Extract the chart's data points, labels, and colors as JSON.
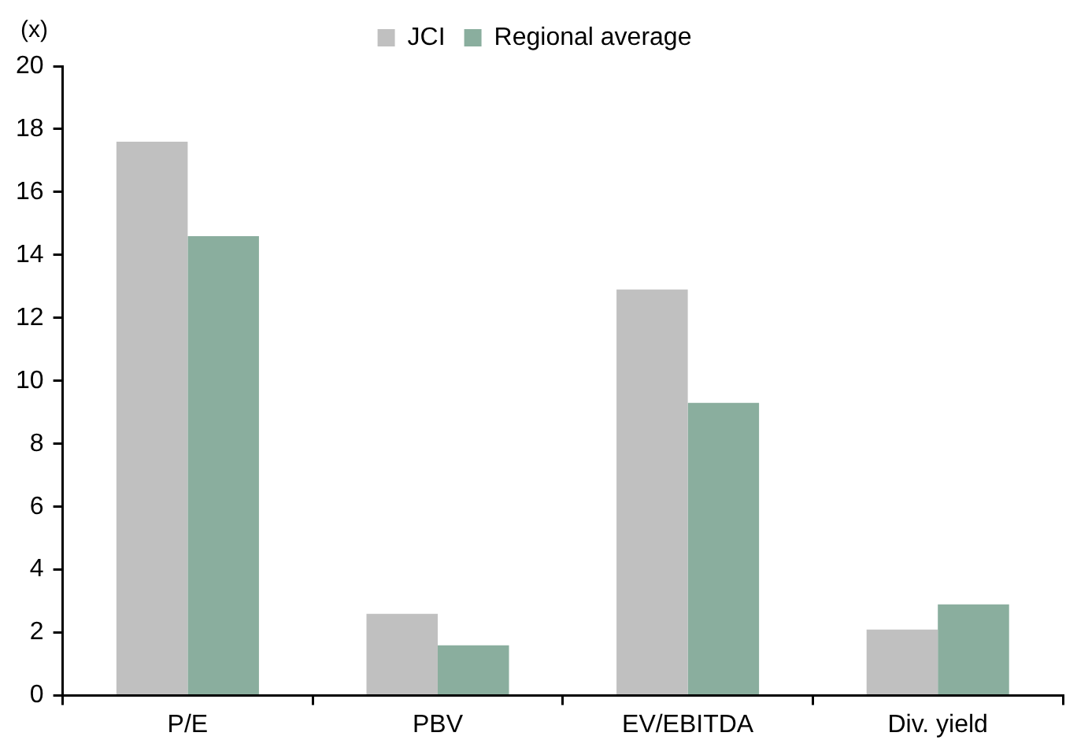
{
  "chart_data": {
    "type": "bar",
    "ylabel": "(x)",
    "categories": [
      "P/E",
      "PBV",
      "EV/EBITDA",
      "Div. yield"
    ],
    "series": [
      {
        "name": "JCI",
        "color": "#c0c0c0",
        "values": [
          17.6,
          2.6,
          12.9,
          2.1
        ]
      },
      {
        "name": "Regional average",
        "color": "#8aae9e",
        "values": [
          14.6,
          1.6,
          9.3,
          2.9
        ]
      }
    ],
    "ylim": [
      0,
      20
    ],
    "yticks": [
      0,
      2,
      4,
      6,
      8,
      10,
      12,
      14,
      16,
      18,
      20
    ],
    "grid": false,
    "legend": "top"
  }
}
